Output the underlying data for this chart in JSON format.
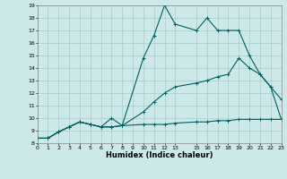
{
  "xlabel": "Humidex (Indice chaleur)",
  "bg_color": "#cce8e8",
  "grid_color": "#aacccc",
  "line_color": "#006060",
  "xlim": [
    0,
    23
  ],
  "ylim": [
    8,
    19
  ],
  "xtick_vals": [
    0,
    1,
    2,
    3,
    4,
    5,
    6,
    7,
    8,
    9,
    10,
    11,
    12,
    13,
    15,
    16,
    17,
    18,
    19,
    20,
    21,
    22,
    23
  ],
  "xtick_labels": [
    "0",
    "1",
    "2",
    "3",
    "4",
    "5",
    "6",
    "7",
    "8",
    "9",
    "10",
    "11",
    "12",
    "13",
    "15",
    "16",
    "17",
    "18",
    "19",
    "20",
    "21",
    "22",
    "23"
  ],
  "ytick_vals": [
    8,
    9,
    10,
    11,
    12,
    13,
    14,
    15,
    16,
    17,
    18,
    19
  ],
  "line1_x": [
    0,
    1,
    2,
    3,
    4,
    5,
    6,
    7,
    8,
    10,
    11,
    12,
    13,
    15,
    16,
    17,
    18,
    19,
    20,
    21,
    22,
    23
  ],
  "line1_y": [
    8.4,
    8.4,
    8.9,
    9.3,
    9.7,
    9.5,
    9.3,
    9.3,
    9.4,
    14.8,
    16.6,
    19.0,
    17.5,
    17.0,
    18.0,
    17.0,
    17.0,
    17.0,
    15.0,
    13.5,
    12.5,
    11.5
  ],
  "line2_x": [
    0,
    1,
    2,
    3,
    4,
    5,
    6,
    7,
    8,
    10,
    11,
    12,
    13,
    15,
    16,
    17,
    18,
    19,
    20,
    21,
    22,
    23
  ],
  "line2_y": [
    8.4,
    8.4,
    8.9,
    9.3,
    9.7,
    9.5,
    9.3,
    10.0,
    9.4,
    10.5,
    11.3,
    12.0,
    12.5,
    12.8,
    13.0,
    13.3,
    13.5,
    14.8,
    14.0,
    13.5,
    12.5,
    9.9
  ],
  "line3_x": [
    0,
    1,
    2,
    3,
    4,
    5,
    6,
    7,
    8,
    10,
    11,
    12,
    13,
    15,
    16,
    17,
    18,
    19,
    20,
    21,
    22,
    23
  ],
  "line3_y": [
    8.4,
    8.4,
    8.9,
    9.3,
    9.7,
    9.5,
    9.3,
    9.3,
    9.4,
    9.5,
    9.5,
    9.5,
    9.6,
    9.7,
    9.7,
    9.8,
    9.8,
    9.9,
    9.9,
    9.9,
    9.9,
    9.9
  ]
}
